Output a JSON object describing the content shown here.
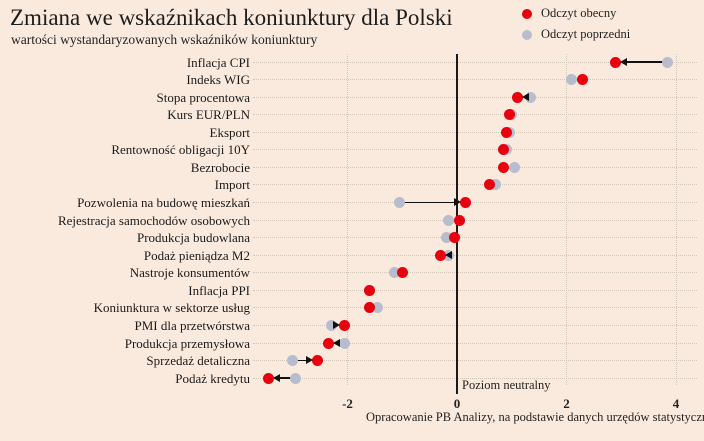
{
  "header": {
    "title": "Zmiana we wskaźnikach koniunktury dla Polski",
    "subtitle": "wartości wystandaryzowanych wskaźników koniunktury"
  },
  "legend": {
    "current_label": "Odczyt obecny",
    "previous_label": "Odczyt poprzedni"
  },
  "colors": {
    "background": "#faeadd",
    "current": "#e7000e",
    "previous": "#b7bdcd",
    "arrow": "#111111",
    "zero_line": "#1a1a1a",
    "grid": "#cfc6b7",
    "text": "#1f1f1f"
  },
  "chart_data": {
    "type": "scatter",
    "subtype": "dumbbell-dot-plot",
    "title": "Zmiana we wskaźnikach koniunktury dla Polski",
    "subtitle": "wartości wystandaryzowanych wskaźników koniunktury",
    "xlabel": "",
    "ylabel": "",
    "x_ticks": [
      -2,
      0,
      2,
      4
    ],
    "x_range": [
      -3.75,
      4.35
    ],
    "grid": "dotted horizontal per row, dotted vertical at ticks, solid line at 0",
    "legend_position": "top-right",
    "zero_line_label": "Poziom neutralny",
    "caption": "Opracowanie PB Analizy, na podstawie danych urzędów statystycznych",
    "series": [
      {
        "name": "Odczyt obecny",
        "color": "#e7000e"
      },
      {
        "name": "Odczyt poprzedni",
        "color": "#b7bdcd"
      }
    ],
    "rows": [
      {
        "label": "Inflacja CPI",
        "current": 2.9,
        "previous": 3.85,
        "arrow": true
      },
      {
        "label": "Indeks WIG",
        "current": 2.3,
        "previous": 2.1,
        "arrow": false
      },
      {
        "label": "Stopa procentowa",
        "current": 1.1,
        "previous": 1.35,
        "arrow": true
      },
      {
        "label": "Kurs EUR/PLN",
        "current": 0.95,
        "previous": 1.0,
        "arrow": false
      },
      {
        "label": "Eksport",
        "current": 0.9,
        "previous": 0.95,
        "arrow": false
      },
      {
        "label": "Rentowność obligacji 10Y",
        "current": 0.85,
        "previous": 0.9,
        "arrow": false
      },
      {
        "label": "Bezrobocie",
        "current": 0.85,
        "previous": 1.05,
        "arrow": false
      },
      {
        "label": "Import",
        "current": 0.6,
        "previous": 0.7,
        "arrow": false
      },
      {
        "label": "Pozwolenia na budowę mieszkań",
        "current": 0.15,
        "previous": -1.05,
        "arrow": true
      },
      {
        "label": "Rejestracja samochodów osobowych",
        "current": 0.05,
        "previous": -0.15,
        "arrow": false
      },
      {
        "label": "Produkcja budowlana",
        "current": -0.05,
        "previous": -0.2,
        "arrow": false
      },
      {
        "label": "Podaż pieniądza M2",
        "current": -0.3,
        "previous": -0.15,
        "arrow": true
      },
      {
        "label": "Nastroje konsumentów",
        "current": -1.0,
        "previous": -1.15,
        "arrow": false
      },
      {
        "label": "Inflacja PPI",
        "current": -1.6,
        "previous": -1.6,
        "arrow": false
      },
      {
        "label": "Koniunktura w sektorze usług",
        "current": -1.6,
        "previous": -1.45,
        "arrow": false
      },
      {
        "label": "PMI dla przetwórstwa",
        "current": -2.05,
        "previous": -2.3,
        "arrow": true
      },
      {
        "label": "Produkcja przemysłowa",
        "current": -2.35,
        "previous": -2.05,
        "arrow": true
      },
      {
        "label": "Sprzedaż detaliczna",
        "current": -2.55,
        "previous": -3.0,
        "arrow": true
      },
      {
        "label": "Podaż kredytu",
        "current": -3.45,
        "previous": -2.95,
        "arrow": true
      }
    ]
  }
}
